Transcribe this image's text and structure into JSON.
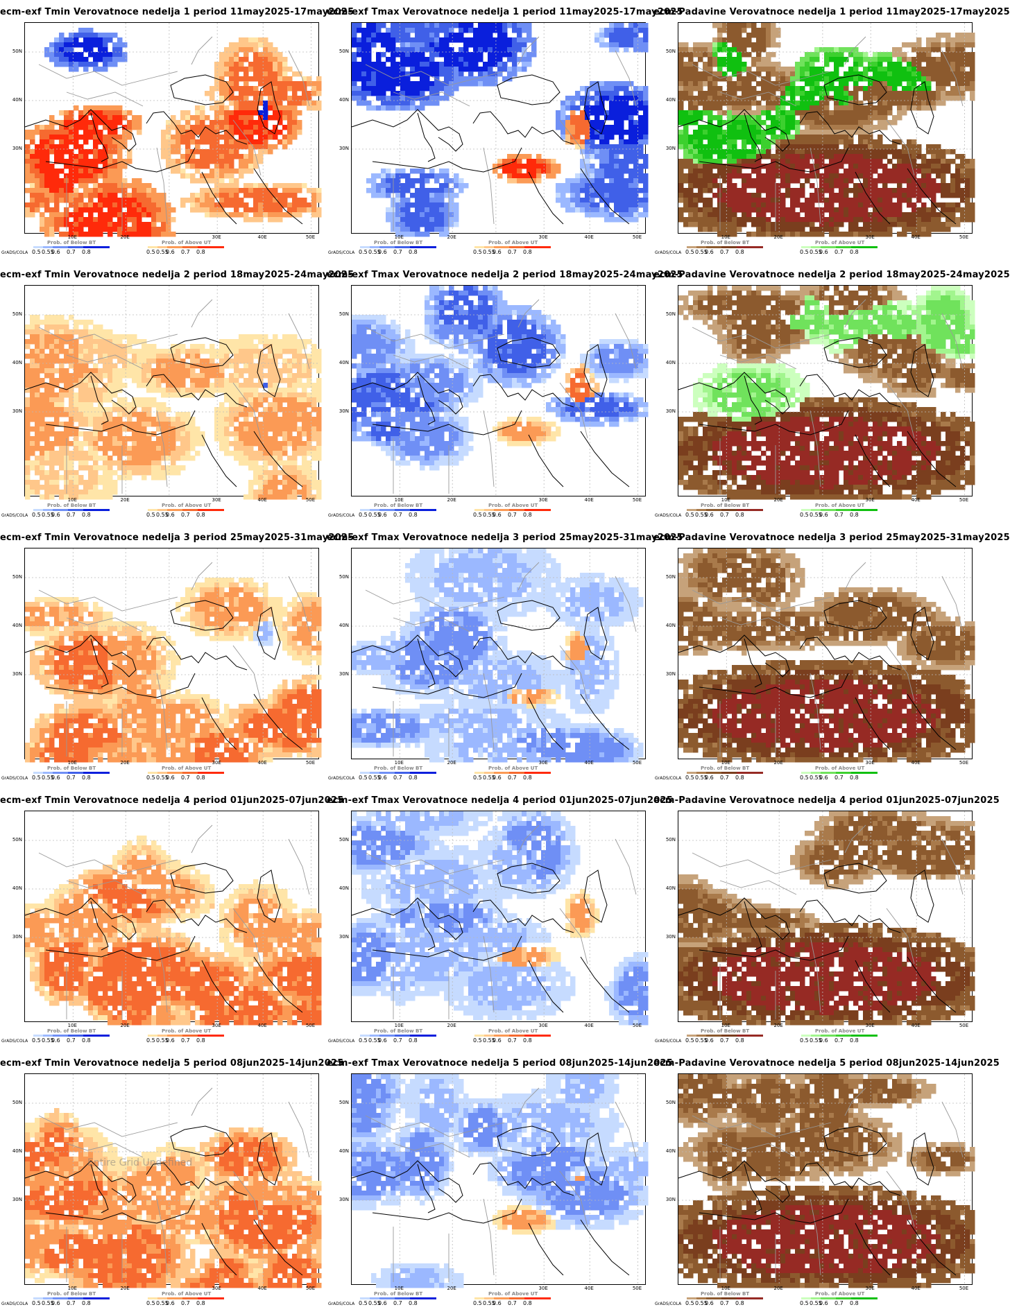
{
  "rows": [
    {
      "week": "1",
      "period": "11may2025–17may2025",
      "titles": [
        "ecm-exf Tmin Verovatnoce nedelja 1 period 11may2025-17may2025",
        "ecm-exf Tmax Verovatnoce nedelja 1 period 11may2025-17may2025",
        "ecm-Padavine Verovatnoce nedelja 1 period 11may2025-17may2025"
      ]
    },
    {
      "week": "2",
      "period": "18may2025–24may2025",
      "titles": [
        "ecm-exf Tmin Verovatnoce nedelja 2 period 18may2025-24may2025",
        "ecm-exf Tmax Verovatnoce nedelja 2 period 18may2025-24may2025",
        "ecm-Padavine Verovatnoce nedelja 2 period 18may2025-24may2025"
      ]
    },
    {
      "week": "3",
      "period": "25may2025–31may2025",
      "titles": [
        "ecm-exf Tmin Verovatnoce nedelja 3 period 25may2025-31may2025",
        "ecm-exf Tmax Verovatnoce nedelja 3 period 25may2025-31may2025",
        "ecm-Padavine Verovatnoce nedelja 3 period 25may2025-31may2025"
      ]
    },
    {
      "week": "4",
      "period": "01jun2025–07jun2025",
      "titles": [
        "ecm-exf Tmin Verovatnoce nedelja 4 period 01jun2025-07jun2025",
        "ecm-exf Tmax Verovatnoce nedelja 4 period 01jun2025-07jun2025",
        "ecm-Padavine Verovatnoce nedelja 4 period 01jun2025-07jun2025"
      ]
    },
    {
      "week": "5",
      "period": "08jun2025–14jun2025",
      "titles": [
        "ecm-exf Tmin Verovatnoce nedelja 5 period 08jun2025-14jun2025",
        "ecm-exf Tmax Verovatnoce nedelja 5 period 08jun2025-14jun2025",
        "ecm-Padavine Verovatnoce nedelja 5 period 08jun2025-14jun2025"
      ]
    }
  ],
  "lat_labels": [
    "50N",
    "40N",
    "30N"
  ],
  "lon_labels": [
    "10E",
    "20E",
    "30E",
    "40E",
    "50E"
  ],
  "grads_label": "GrADS/COLA",
  "legend": {
    "below_title": "Prob. of Below BT",
    "above_title": "Prob. of Above UT",
    "ticks": [
      "0.5",
      "0.55",
      "0.6",
      "0.7",
      "0.8"
    ]
  },
  "watermark": "Entire Grid Undefined",
  "colors": {
    "temp_below": [
      "#c6dbff",
      "#9bb8ff",
      "#6f8ff5",
      "#4060e8",
      "#0a1fdc"
    ],
    "temp_above": [
      "#ffe5a8",
      "#ffc78a",
      "#fb9a55",
      "#f66a30",
      "#ff2a0a"
    ],
    "precip_below": [
      "#c6a27a",
      "#a97a4b",
      "#8c5a2e",
      "#7a3e1e",
      "#962a24"
    ],
    "precip_above": [
      "#ccffbe",
      "#a2f58e",
      "#70e25c",
      "#3cd02e",
      "#10c010"
    ],
    "border": "#999999",
    "coast": "#000000"
  },
  "panel_types": [
    "Tmin",
    "Tmax",
    "Padavine"
  ]
}
